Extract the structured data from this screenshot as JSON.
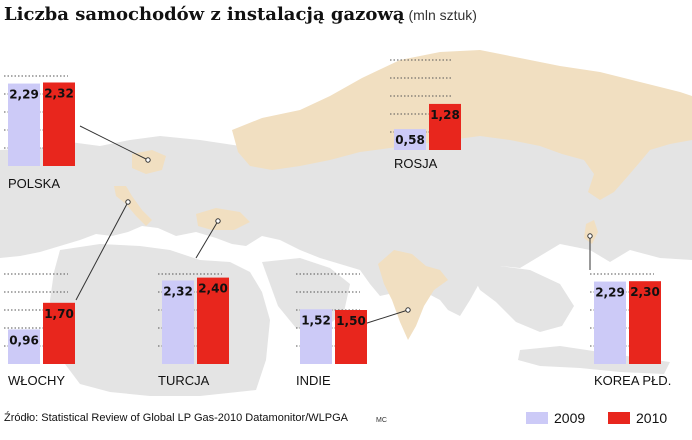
{
  "title": "Liczba samochodów z instalacją gazową",
  "unit": "(mln sztuk)",
  "source": "Źródło: Statistical Review of Global LP Gas-2010 Datamonitor/WLPGA",
  "credit": "MC",
  "colors": {
    "y2009": "#cccaf7",
    "y2010": "#e8261d",
    "map_highlight": "#f1dfc1",
    "map_base": "#e4e4e4"
  },
  "chart_data": {
    "type": "bar",
    "series": [
      {
        "name": "2009"
      },
      {
        "name": "2010"
      }
    ],
    "legend_position": "bottom-right",
    "groups": [
      {
        "country": "POLSKA",
        "values": [
          2.29,
          2.32
        ],
        "labels": [
          "2,29",
          "2,32"
        ]
      },
      {
        "country": "ROSJA",
        "values": [
          0.58,
          1.28
        ],
        "labels": [
          "0,58",
          "1,28"
        ]
      },
      {
        "country": "WŁOCHY",
        "values": [
          0.96,
          1.7
        ],
        "labels": [
          "0,96",
          "1,70"
        ]
      },
      {
        "country": "TURCJA",
        "values": [
          2.32,
          2.4
        ],
        "labels": [
          "2,32",
          "2,40"
        ]
      },
      {
        "country": "INDIE",
        "values": [
          1.52,
          1.5
        ],
        "labels": [
          "1,52",
          "1,50"
        ]
      },
      {
        "country": "KOREA PŁD.",
        "values": [
          2.29,
          2.3
        ],
        "labels": [
          "2,29",
          "2,30"
        ]
      }
    ]
  }
}
